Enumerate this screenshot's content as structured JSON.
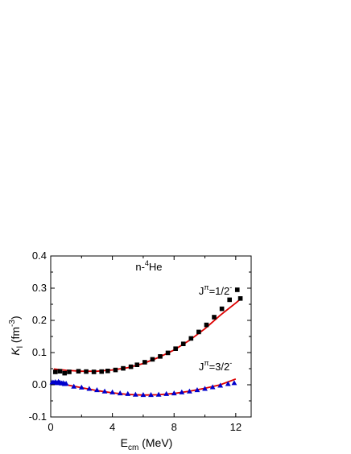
{
  "chart_data": {
    "type": "scatter",
    "title": "",
    "xlabel": {
      "base": "E",
      "sub": "cm",
      "unit": " (MeV)"
    },
    "ylabel": {
      "base": "K",
      "sub": "l",
      "unit_open": " (fm",
      "unit_sup": "-3",
      "unit_close": ")"
    },
    "xlim": [
      0,
      13
    ],
    "ylim": [
      -0.1,
      0.4
    ],
    "xticks": [
      0,
      4,
      8,
      12
    ],
    "xtick_labels": [
      "0",
      "4",
      "8",
      "12"
    ],
    "yticks": [
      -0.1,
      0.0,
      0.1,
      0.2,
      0.3,
      0.4
    ],
    "ytick_labels": [
      "-0.1",
      "0.0",
      "0.1",
      "0.2",
      "0.3",
      "0.4"
    ],
    "grid": false,
    "legend": "none",
    "annotations": {
      "system": {
        "pre": "n-",
        "sup": "4",
        "post": "He",
        "x": 5.5,
        "y": 0.355
      },
      "j12": {
        "pre": "J",
        "sup": "π",
        "mid": "=1/2",
        "sup2": "-",
        "x": 9.6,
        "y": 0.28
      },
      "j32": {
        "pre": "J",
        "sup": "π",
        "mid": "=3/2",
        "sup2": "-",
        "x": 9.6,
        "y": 0.045
      }
    },
    "series": [
      {
        "marker": "square",
        "color": "#000000",
        "points": [
          [
            0.3,
            0.04
          ],
          [
            0.6,
            0.042
          ],
          [
            0.9,
            0.036
          ],
          [
            1.2,
            0.04
          ],
          [
            1.8,
            0.042
          ],
          [
            2.3,
            0.041
          ],
          [
            2.8,
            0.04
          ],
          [
            3.3,
            0.041
          ],
          [
            3.7,
            0.043
          ],
          [
            4.2,
            0.046
          ],
          [
            4.7,
            0.051
          ],
          [
            5.2,
            0.056
          ],
          [
            5.6,
            0.062
          ],
          [
            6.1,
            0.07
          ],
          [
            6.6,
            0.079
          ],
          [
            7.1,
            0.088
          ],
          [
            7.6,
            0.099
          ],
          [
            8.1,
            0.112
          ],
          [
            8.6,
            0.127
          ],
          [
            9.1,
            0.144
          ],
          [
            9.6,
            0.164
          ],
          [
            10.1,
            0.186
          ],
          [
            10.6,
            0.21
          ],
          [
            11.1,
            0.236
          ],
          [
            11.6,
            0.264
          ],
          [
            12.1,
            0.295
          ],
          [
            12.3,
            0.268
          ]
        ]
      },
      {
        "marker": "triangle",
        "color": "#0000cc",
        "points": [
          [
            0.1,
            0.008
          ],
          [
            0.2,
            0.007
          ],
          [
            0.3,
            0.009
          ],
          [
            0.4,
            0.006
          ],
          [
            0.5,
            0.01
          ],
          [
            0.6,
            0.007
          ],
          [
            0.7,
            0.005
          ],
          [
            0.8,
            0.006
          ],
          [
            0.9,
            0.003
          ],
          [
            1.0,
            0.004
          ],
          [
            1.5,
            -0.005
          ],
          [
            2.0,
            -0.008
          ],
          [
            2.5,
            -0.012
          ],
          [
            3.0,
            -0.016
          ],
          [
            3.5,
            -0.02
          ],
          [
            4.0,
            -0.023
          ],
          [
            4.5,
            -0.026
          ],
          [
            5.0,
            -0.028
          ],
          [
            5.5,
            -0.03
          ],
          [
            6.0,
            -0.031
          ],
          [
            6.5,
            -0.031
          ],
          [
            7.0,
            -0.03
          ],
          [
            7.5,
            -0.028
          ],
          [
            8.0,
            -0.026
          ],
          [
            8.5,
            -0.023
          ],
          [
            9.0,
            -0.02
          ],
          [
            9.5,
            -0.016
          ],
          [
            10.0,
            -0.012
          ],
          [
            10.5,
            -0.007
          ],
          [
            11.0,
            -0.002
          ],
          [
            11.5,
            0.003
          ],
          [
            11.9,
            0.006
          ]
        ]
      }
    ],
    "fit_lines": [
      {
        "color": "#dd0000",
        "points": [
          [
            0.2,
            0.049
          ],
          [
            1.0,
            0.045
          ],
          [
            2.0,
            0.042
          ],
          [
            3.0,
            0.042
          ],
          [
            4.0,
            0.046
          ],
          [
            5.0,
            0.053
          ],
          [
            6.0,
            0.066
          ],
          [
            7.0,
            0.085
          ],
          [
            8.0,
            0.108
          ],
          [
            9.0,
            0.138
          ],
          [
            10.0,
            0.174
          ],
          [
            11.0,
            0.216
          ],
          [
            12.0,
            0.254
          ],
          [
            12.4,
            0.27
          ]
        ]
      },
      {
        "color": "#dd0000",
        "points": [
          [
            0.2,
            0.007
          ],
          [
            1.0,
            0.0
          ],
          [
            2.0,
            -0.009
          ],
          [
            3.0,
            -0.018
          ],
          [
            4.0,
            -0.025
          ],
          [
            5.0,
            -0.03
          ],
          [
            6.0,
            -0.032
          ],
          [
            7.0,
            -0.031
          ],
          [
            8.0,
            -0.027
          ],
          [
            9.0,
            -0.02
          ],
          [
            10.0,
            -0.011
          ],
          [
            11.0,
            0.0
          ],
          [
            12.0,
            0.018
          ]
        ]
      }
    ]
  }
}
